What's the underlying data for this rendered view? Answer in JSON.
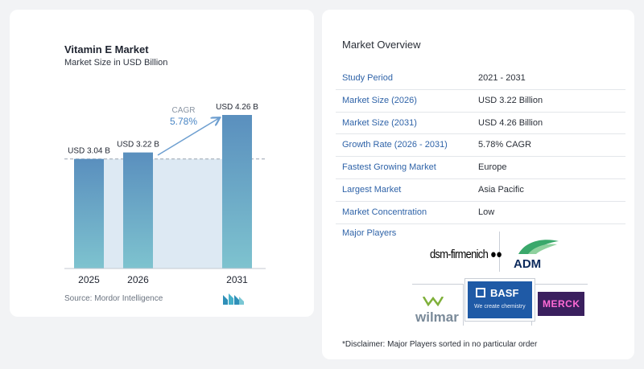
{
  "chart_data": {
    "type": "bar",
    "title": "Vitamin E Market",
    "subtitle": "Market Size in USD Billion",
    "categories": [
      "2025",
      "2026",
      "2031"
    ],
    "values": [
      3.04,
      3.22,
      4.26
    ],
    "data_labels": [
      "USD 3.04 B",
      "USD 3.22 B",
      "USD 4.26 B"
    ],
    "annotation": {
      "label": "CAGR",
      "value": "5.78%"
    },
    "ylim": [
      0,
      4.26
    ],
    "grid": false,
    "colors": {
      "bar_top": "#5a8fbe",
      "bar_bottom": "#7ec3cf",
      "band": "#dde9f3",
      "arrow": "#6e9fd0",
      "cagr_value": "#4a86c5"
    }
  },
  "source": "Source: Mordor Intelligence",
  "overview": {
    "title": "Market Overview",
    "rows": [
      {
        "label": "Study Period",
        "value": "2021 - 2031"
      },
      {
        "label": "Market Size (2026)",
        "value": "USD 3.22 Billion"
      },
      {
        "label": "Market Size (2031)",
        "value": "USD 4.26 Billion"
      },
      {
        "label": "Growth Rate (2026 - 2031)",
        "value": "5.78% CAGR"
      },
      {
        "label": "Fastest Growing Market",
        "value": "Europe"
      },
      {
        "label": "Largest Market",
        "value": "Asia Pacific"
      },
      {
        "label": "Market Concentration",
        "value": "Low"
      }
    ]
  },
  "players": {
    "title": "Major Players",
    "logos": {
      "dsm": "dsm-firmenich",
      "adm": "ADM",
      "wilmar": "wilmar",
      "basf": "BASF",
      "basf_tagline": "We create chemistry",
      "merck": "MERCK"
    }
  },
  "disclaimer": "*Disclaimer: Major Players sorted in no particular order"
}
